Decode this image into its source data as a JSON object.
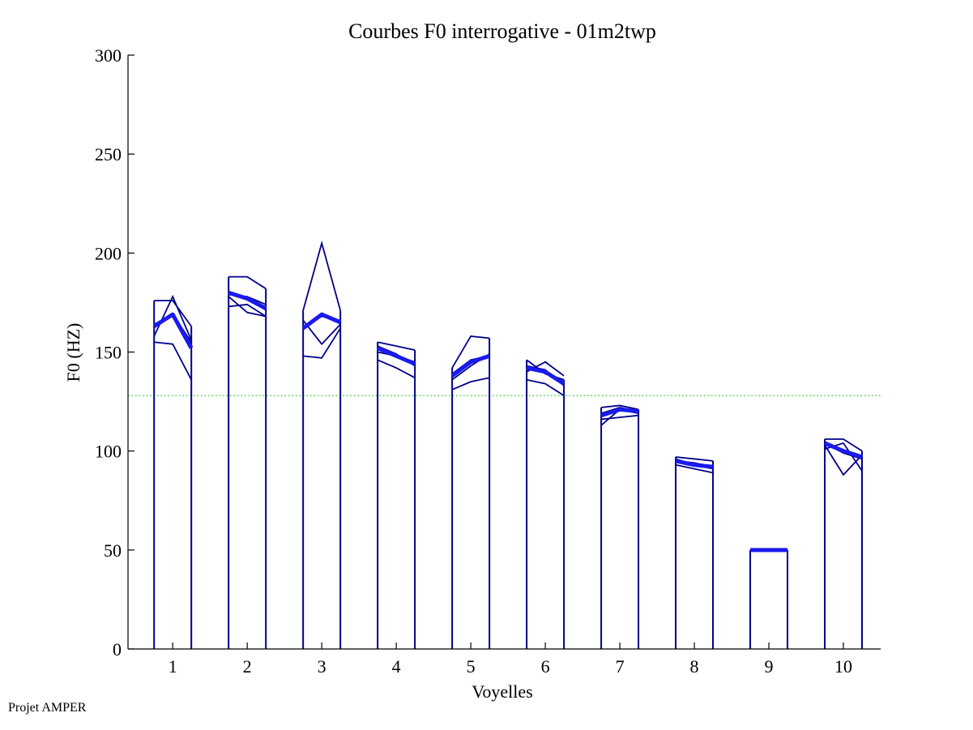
{
  "chart_data": {
    "type": "line",
    "title": "Courbes F0 interrogative - 01m2twp",
    "xlabel": "Voyelles",
    "ylabel": "F0 (HZ)",
    "ylim": [
      0,
      300
    ],
    "yticks": [
      0,
      50,
      100,
      150,
      200,
      250,
      300
    ],
    "xlim": [
      0.4,
      10.5
    ],
    "xticks": [
      1,
      2,
      3,
      4,
      5,
      6,
      7,
      8,
      9,
      10
    ],
    "grid": false,
    "reference_line": {
      "y": 128,
      "style": "dotted",
      "color": "#22cc22"
    },
    "colors": {
      "curves": "#00008b",
      "mean": "#1a1aee"
    },
    "vowels": [
      {
        "x": 1,
        "box_top": 176,
        "mean": [
          163,
          169,
          152
        ],
        "curves": [
          [
            176,
            176,
            163
          ],
          [
            155,
            154,
            136
          ],
          [
            158,
            178,
            156
          ],
          [
            164,
            169,
            155
          ]
        ]
      },
      {
        "x": 2,
        "box_top": 188,
        "mean": [
          180,
          177,
          172
        ],
        "curves": [
          [
            188,
            188,
            182
          ],
          [
            173,
            174,
            168
          ],
          [
            178,
            170,
            168
          ],
          [
            179,
            178,
            174
          ]
        ]
      },
      {
        "x": 3,
        "box_top": 171,
        "mean": [
          162,
          169,
          165
        ],
        "curves": [
          [
            171,
            205,
            171
          ],
          [
            148,
            147,
            162
          ],
          [
            166,
            154,
            164
          ],
          [
            163,
            168,
            166
          ]
        ]
      },
      {
        "x": 4,
        "box_top": 155,
        "mean": [
          152,
          148,
          144
        ],
        "curves": [
          [
            155,
            153,
            151
          ],
          [
            146,
            142,
            137
          ],
          [
            150,
            148,
            145
          ],
          [
            153,
            149,
            143
          ]
        ]
      },
      {
        "x": 5,
        "box_top": 142,
        "mean": [
          138,
          145,
          148
        ],
        "curves": [
          [
            142,
            158,
            157
          ],
          [
            131,
            135,
            137
          ],
          [
            136,
            143,
            149
          ],
          [
            139,
            146,
            148
          ]
        ]
      },
      {
        "x": 6,
        "box_top": 146,
        "mean": [
          142,
          140,
          134
        ],
        "curves": [
          [
            146,
            139,
            136
          ],
          [
            136,
            134,
            128
          ],
          [
            140,
            145,
            138
          ],
          [
            143,
            141,
            133
          ]
        ]
      },
      {
        "x": 7,
        "box_top": 122,
        "mean": [
          118,
          121,
          120
        ],
        "curves": [
          [
            122,
            123,
            121
          ],
          [
            113,
            121,
            119
          ],
          [
            116,
            117,
            118
          ],
          [
            119,
            122,
            120
          ]
        ]
      },
      {
        "x": 8,
        "box_top": 97,
        "mean": [
          95,
          93,
          92
        ],
        "curves": [
          [
            97,
            96,
            95
          ],
          [
            93,
            91,
            89
          ],
          [
            95,
            94,
            92
          ],
          [
            96,
            93,
            91
          ]
        ]
      },
      {
        "x": 9,
        "box_top": 50,
        "mean": [
          50,
          50,
          50
        ],
        "curves": [
          [
            50,
            50,
            50
          ]
        ]
      },
      {
        "x": 10,
        "box_top": 106,
        "mean": [
          104,
          100,
          97
        ],
        "curves": [
          [
            106,
            106,
            100
          ],
          [
            103,
            88,
            98
          ],
          [
            101,
            104,
            90
          ],
          [
            104,
            99,
            96
          ]
        ]
      }
    ]
  },
  "footer": {
    "text": "Projet AMPER"
  }
}
